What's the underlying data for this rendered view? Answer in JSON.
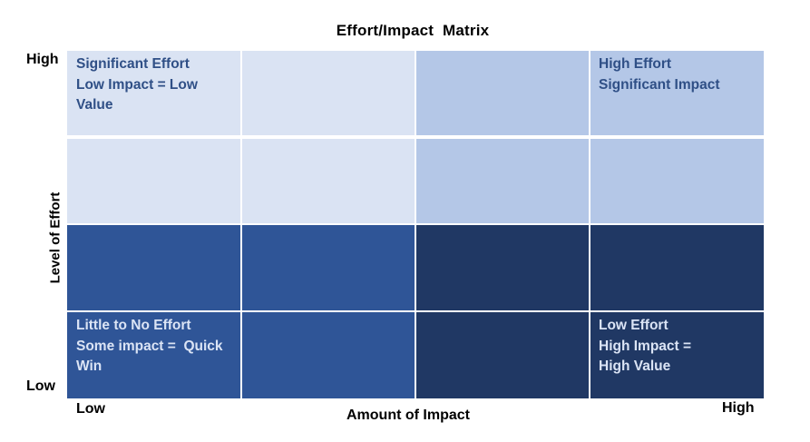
{
  "title": "Effort/Impact  Matrix",
  "y_axis": {
    "title": "Level of Effort",
    "high": "High",
    "low": "Low"
  },
  "x_axis": {
    "title": "Amount of Impact",
    "low": "Low",
    "high": "High"
  },
  "quadrants": {
    "top_left": {
      "line1": "Significant Effort",
      "line2": "Low Impact = Low",
      "line3": "Value"
    },
    "top_right": {
      "line1": "High Effort",
      "line2": "Significant Impact"
    },
    "bottom_left": {
      "line1": "Little to No Effort",
      "line2": "Some impact =  Quick",
      "line3": "Win"
    },
    "bottom_right": {
      "line1": "Low Effort",
      "line2": "High Impact =",
      "line3": "High Value"
    }
  },
  "colors": {
    "light_left": "#dae3f3",
    "light_right": "#b4c7e7",
    "dark_left": "#2f5597",
    "dark_right": "#203864"
  }
}
